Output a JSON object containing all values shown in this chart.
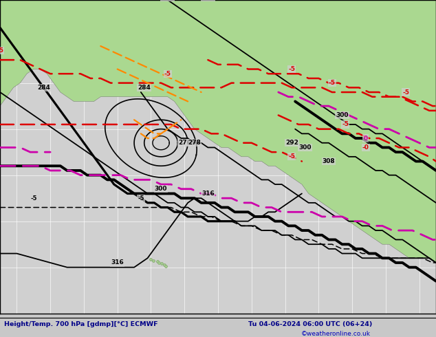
{
  "title": "Height/Temp. 700 hPa [gdmp][°C] ECMWF",
  "datetime_str": "Tu 04-06-2024 06:00 UTC (06+24)",
  "copyright": "©weatheronline.co.uk",
  "bg_color": "#c8c8c8",
  "land_color": "#aad890",
  "ocean_color": "#d0d0d0",
  "grid_color": "#ffffff",
  "title_color": "#000088",
  "copyright_color": "#0000bb",
  "figsize": [
    6.34,
    4.9
  ],
  "dpi": 100,
  "lon_min": -205,
  "lon_max": -75,
  "lat_min": 10,
  "lat_max": 78
}
